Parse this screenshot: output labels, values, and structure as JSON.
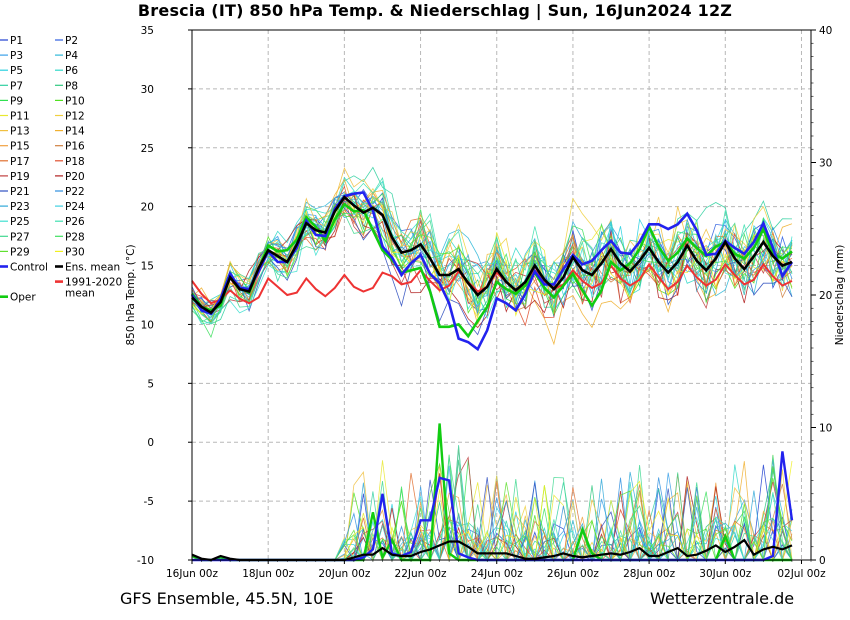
{
  "title": "Brescia  (IT)  850 hPa Temp. & Niederschlag | Sun, 16Jun2024 12Z",
  "footer": {
    "left": "GFS Ensemble, 45.5N, 10E",
    "right": "Wetterzentrale.de"
  },
  "chart_data": {
    "type": "line",
    "title": "Brescia  (IT)  850 hPa Temp. & Niederschlag | Sun, 16Jun2024 12Z",
    "xlabel": "Date (UTC)",
    "ylabel": "850 hPa Temp. (°C)",
    "y2label": "Niederschlag (mm)",
    "ylim": [
      -10,
      35
    ],
    "y2lim": [
      0,
      40
    ],
    "yticks": [
      -10,
      -5,
      0,
      5,
      10,
      15,
      20,
      25,
      30,
      35
    ],
    "y2ticks": [
      0,
      10,
      20,
      30,
      40
    ],
    "xlim": [
      0,
      16.25
    ],
    "x_unit": "days since 16Jun 00z",
    "xticks": [
      {
        "day": 0,
        "label": "16Jun 00z"
      },
      {
        "day": 2,
        "label": "18Jun 00z"
      },
      {
        "day": 4,
        "label": "20Jun 00z"
      },
      {
        "day": 6,
        "label": "22Jun 00z"
      },
      {
        "day": 8,
        "label": "24Jun 00z"
      },
      {
        "day": 10,
        "label": "26Jun 00z"
      },
      {
        "day": 12,
        "label": "28Jun 00z"
      },
      {
        "day": 14,
        "label": "30Jun 00z"
      },
      {
        "day": 16,
        "label": "02Jul 00z"
      }
    ],
    "grid": true,
    "legend_position": "left",
    "legend": [
      {
        "name": "P1",
        "color": "#1f3fd0"
      },
      {
        "name": "P2",
        "color": "#2f5fe0"
      },
      {
        "name": "P3",
        "color": "#3aa0e8"
      },
      {
        "name": "P4",
        "color": "#30b8d8"
      },
      {
        "name": "P5",
        "color": "#2ad0e0"
      },
      {
        "name": "P6",
        "color": "#30d8c8"
      },
      {
        "name": "P7",
        "color": "#30d0a0"
      },
      {
        "name": "P8",
        "color": "#30c880"
      },
      {
        "name": "P9",
        "color": "#30e050"
      },
      {
        "name": "P10",
        "color": "#50e020"
      },
      {
        "name": "P11",
        "color": "#e8e830"
      },
      {
        "name": "P12",
        "color": "#f0d040"
      },
      {
        "name": "P13",
        "color": "#f0c040"
      },
      {
        "name": "P14",
        "color": "#f0b030"
      },
      {
        "name": "P15",
        "color": "#f0a040"
      },
      {
        "name": "P16",
        "color": "#d08040"
      },
      {
        "name": "P17",
        "color": "#e07030"
      },
      {
        "name": "P18",
        "color": "#e05030"
      },
      {
        "name": "P19",
        "color": "#c04040"
      },
      {
        "name": "P20",
        "color": "#b02020"
      },
      {
        "name": "P21",
        "color": "#3050c0"
      },
      {
        "name": "P22",
        "color": "#3090e0"
      },
      {
        "name": "P23",
        "color": "#30a8d8"
      },
      {
        "name": "P24",
        "color": "#40d0e0"
      },
      {
        "name": "P25",
        "color": "#40e0d0"
      },
      {
        "name": "P26",
        "color": "#40e0b0"
      },
      {
        "name": "P27",
        "color": "#40d890"
      },
      {
        "name": "P28",
        "color": "#40e060"
      },
      {
        "name": "P29",
        "color": "#60e030"
      },
      {
        "name": "P30",
        "color": "#f0f020"
      },
      {
        "name": "Control",
        "color": "#2222ee"
      },
      {
        "name": "Ens. mean",
        "color": "#000000"
      },
      {
        "name": "",
        "color": "#ffffff"
      },
      {
        "name": "1991-2020 mean",
        "color": "#ee3333"
      },
      {
        "name": "Oper",
        "color": "#11cc11"
      },
      {
        "name": "",
        "color": "#ffffff"
      }
    ],
    "series_day_step": 0.25,
    "ensemble_mean_temp": [
      12.3,
      11.5,
      11.0,
      11.9,
      14.0,
      13.0,
      12.8,
      14.8,
      16.3,
      15.8,
      15.3,
      16.8,
      18.6,
      18.0,
      17.8,
      19.6,
      20.8,
      20.1,
      19.5,
      19.9,
      19.3,
      17.4,
      16.1,
      16.3,
      16.8,
      15.6,
      14.2,
      14.2,
      14.7,
      13.5,
      12.5,
      13.2,
      14.7,
      13.6,
      12.9,
      13.6,
      15.0,
      13.8,
      13.0,
      14.0,
      15.7,
      14.6,
      14.2,
      15.2,
      16.4,
      15.2,
      14.5,
      15.4,
      16.5,
      15.3,
      14.4,
      15.3,
      16.7,
      15.4,
      14.6,
      15.6,
      17.0,
      15.6,
      14.7,
      15.8,
      17.0,
      15.8,
      15.0,
      15.3
    ],
    "control_temp": [
      12.5,
      11.2,
      10.9,
      12.2,
      14.3,
      13.1,
      13.0,
      14.5,
      16.2,
      15.3,
      15.3,
      16.5,
      18.8,
      17.6,
      17.5,
      19.8,
      20.9,
      21.1,
      21.2,
      19.7,
      16.6,
      15.7,
      14.2,
      15.2,
      15.9,
      14.3,
      13.5,
      11.8,
      8.8,
      8.5,
      7.9,
      9.5,
      12.2,
      11.8,
      11.2,
      12.6,
      14.5,
      13.4,
      13.4,
      14.7,
      15.9,
      15.1,
      15.4,
      16.3,
      17.1,
      16.1,
      16.0,
      17.0,
      18.5,
      18.5,
      18.1,
      18.5,
      19.4,
      18.0,
      15.9,
      16.0,
      17.1,
      16.5,
      16.0,
      17.0,
      18.6,
      16.5,
      14.1,
      15.3
    ],
    "oper_temp": [
      12.6,
      11.5,
      11.2,
      11.6,
      14.2,
      13.1,
      12.7,
      14.7,
      16.7,
      16.2,
      16.3,
      17.2,
      19.1,
      18.3,
      17.1,
      18.9,
      20.2,
      19.6,
      19.7,
      18.0,
      16.3,
      15.5,
      14.4,
      14.6,
      14.8,
      12.8,
      9.8,
      9.8,
      10.0,
      9.0,
      10.3,
      11.5,
      13.6,
      13.0,
      12.6,
      13.3,
      14.4,
      13.1,
      12.3,
      13.3,
      14.3,
      12.9,
      11.6,
      12.9,
      15.3,
      14.6,
      15.2,
      16.4,
      18.3,
      16.6,
      15.4,
      16.1,
      17.3,
      16.5,
      15.8,
      16.6,
      17.0,
      16.0,
      15.6,
      16.5,
      18.1,
      16.0,
      15.6,
      16.2
    ],
    "climate_mean_temp": [
      13.7,
      12.6,
      11.8,
      12.1,
      12.9,
      12.2,
      11.8,
      12.3,
      13.9,
      13.2,
      12.5,
      12.7,
      13.9,
      13.0,
      12.4,
      13.1,
      14.2,
      13.2,
      12.8,
      13.1,
      14.4,
      14.1,
      13.4,
      13.6,
      14.6,
      13.7,
      12.9,
      13.3,
      14.5,
      13.6,
      12.8,
      13.2,
      14.4,
      13.6,
      12.9,
      13.3,
      14.6,
      13.7,
      13.0,
      13.4,
      14.6,
      13.7,
      13.1,
      13.5,
      15.0,
      13.9,
      13.3,
      13.8,
      15.1,
      14.0,
      13.0,
      13.6,
      15.0,
      14.0,
      13.3,
      13.8,
      15.1,
      14.2,
      13.4,
      13.8,
      15.1,
      14.1,
      13.3,
      13.7
    ],
    "ensemble_mean_precip": [
      0.4,
      0.1,
      0.0,
      0.3,
      0.1,
      0.0,
      0.0,
      0.0,
      0.0,
      0.0,
      0.0,
      0.0,
      0.0,
      0.0,
      0.0,
      0.0,
      0.0,
      0.2,
      0.4,
      0.4,
      0.9,
      0.4,
      0.3,
      0.3,
      0.6,
      0.8,
      1.1,
      1.4,
      1.4,
      1.0,
      0.5,
      0.5,
      0.5,
      0.5,
      0.3,
      0.1,
      0.1,
      0.2,
      0.3,
      0.5,
      0.3,
      0.2,
      0.3,
      0.4,
      0.5,
      0.4,
      0.6,
      0.9,
      0.3,
      0.3,
      0.6,
      0.9,
      0.3,
      0.4,
      0.7,
      1.1,
      0.6,
      1.0,
      1.5,
      0.4,
      0.8,
      1.0,
      0.8,
      1.1
    ],
    "control_precip": [
      0.0,
      0.0,
      0.0,
      0.0,
      0.0,
      0.0,
      0.0,
      0.0,
      0.0,
      0.0,
      0.0,
      0.0,
      0.0,
      0.0,
      0.0,
      0.0,
      0.0,
      0.0,
      0.2,
      0.8,
      5.0,
      0.5,
      0.3,
      0.6,
      3.0,
      3.0,
      6.2,
      6.0,
      0.5,
      0.2,
      0.0,
      0.0,
      0.0,
      0.0,
      0.0,
      0.0,
      0.0,
      0.0,
      0.0,
      0.0,
      0.0,
      0.0,
      0.0,
      0.0,
      0.0,
      0.0,
      0.0,
      0.0,
      0.0,
      0.0,
      0.0,
      0.0,
      0.0,
      0.0,
      0.0,
      0.0,
      0.0,
      0.0,
      0.0,
      0.0,
      0.0,
      0.3,
      8.2,
      3.0
    ],
    "oper_precip": [
      0.3,
      0.0,
      0.0,
      0.2,
      0.0,
      0.0,
      0.0,
      0.0,
      0.0,
      0.0,
      0.0,
      0.0,
      0.0,
      0.0,
      0.0,
      0.0,
      0.0,
      0.0,
      0.0,
      3.6,
      0.2,
      1.5,
      0.0,
      0.0,
      0.0,
      0.0,
      10.3,
      0.5,
      0.0,
      0.0,
      0.0,
      0.0,
      0.0,
      0.0,
      0.0,
      0.0,
      0.0,
      0.0,
      0.0,
      0.0,
      0.0,
      2.3,
      0.5,
      0.0,
      0.0,
      0.0,
      0.0,
      0.0,
      0.0,
      0.0,
      0.0,
      0.0,
      0.0,
      0.0,
      0.0,
      0.0,
      1.8,
      0.0,
      0.0,
      0.0,
      0.0,
      0.0,
      0.0,
      0.0
    ]
  }
}
